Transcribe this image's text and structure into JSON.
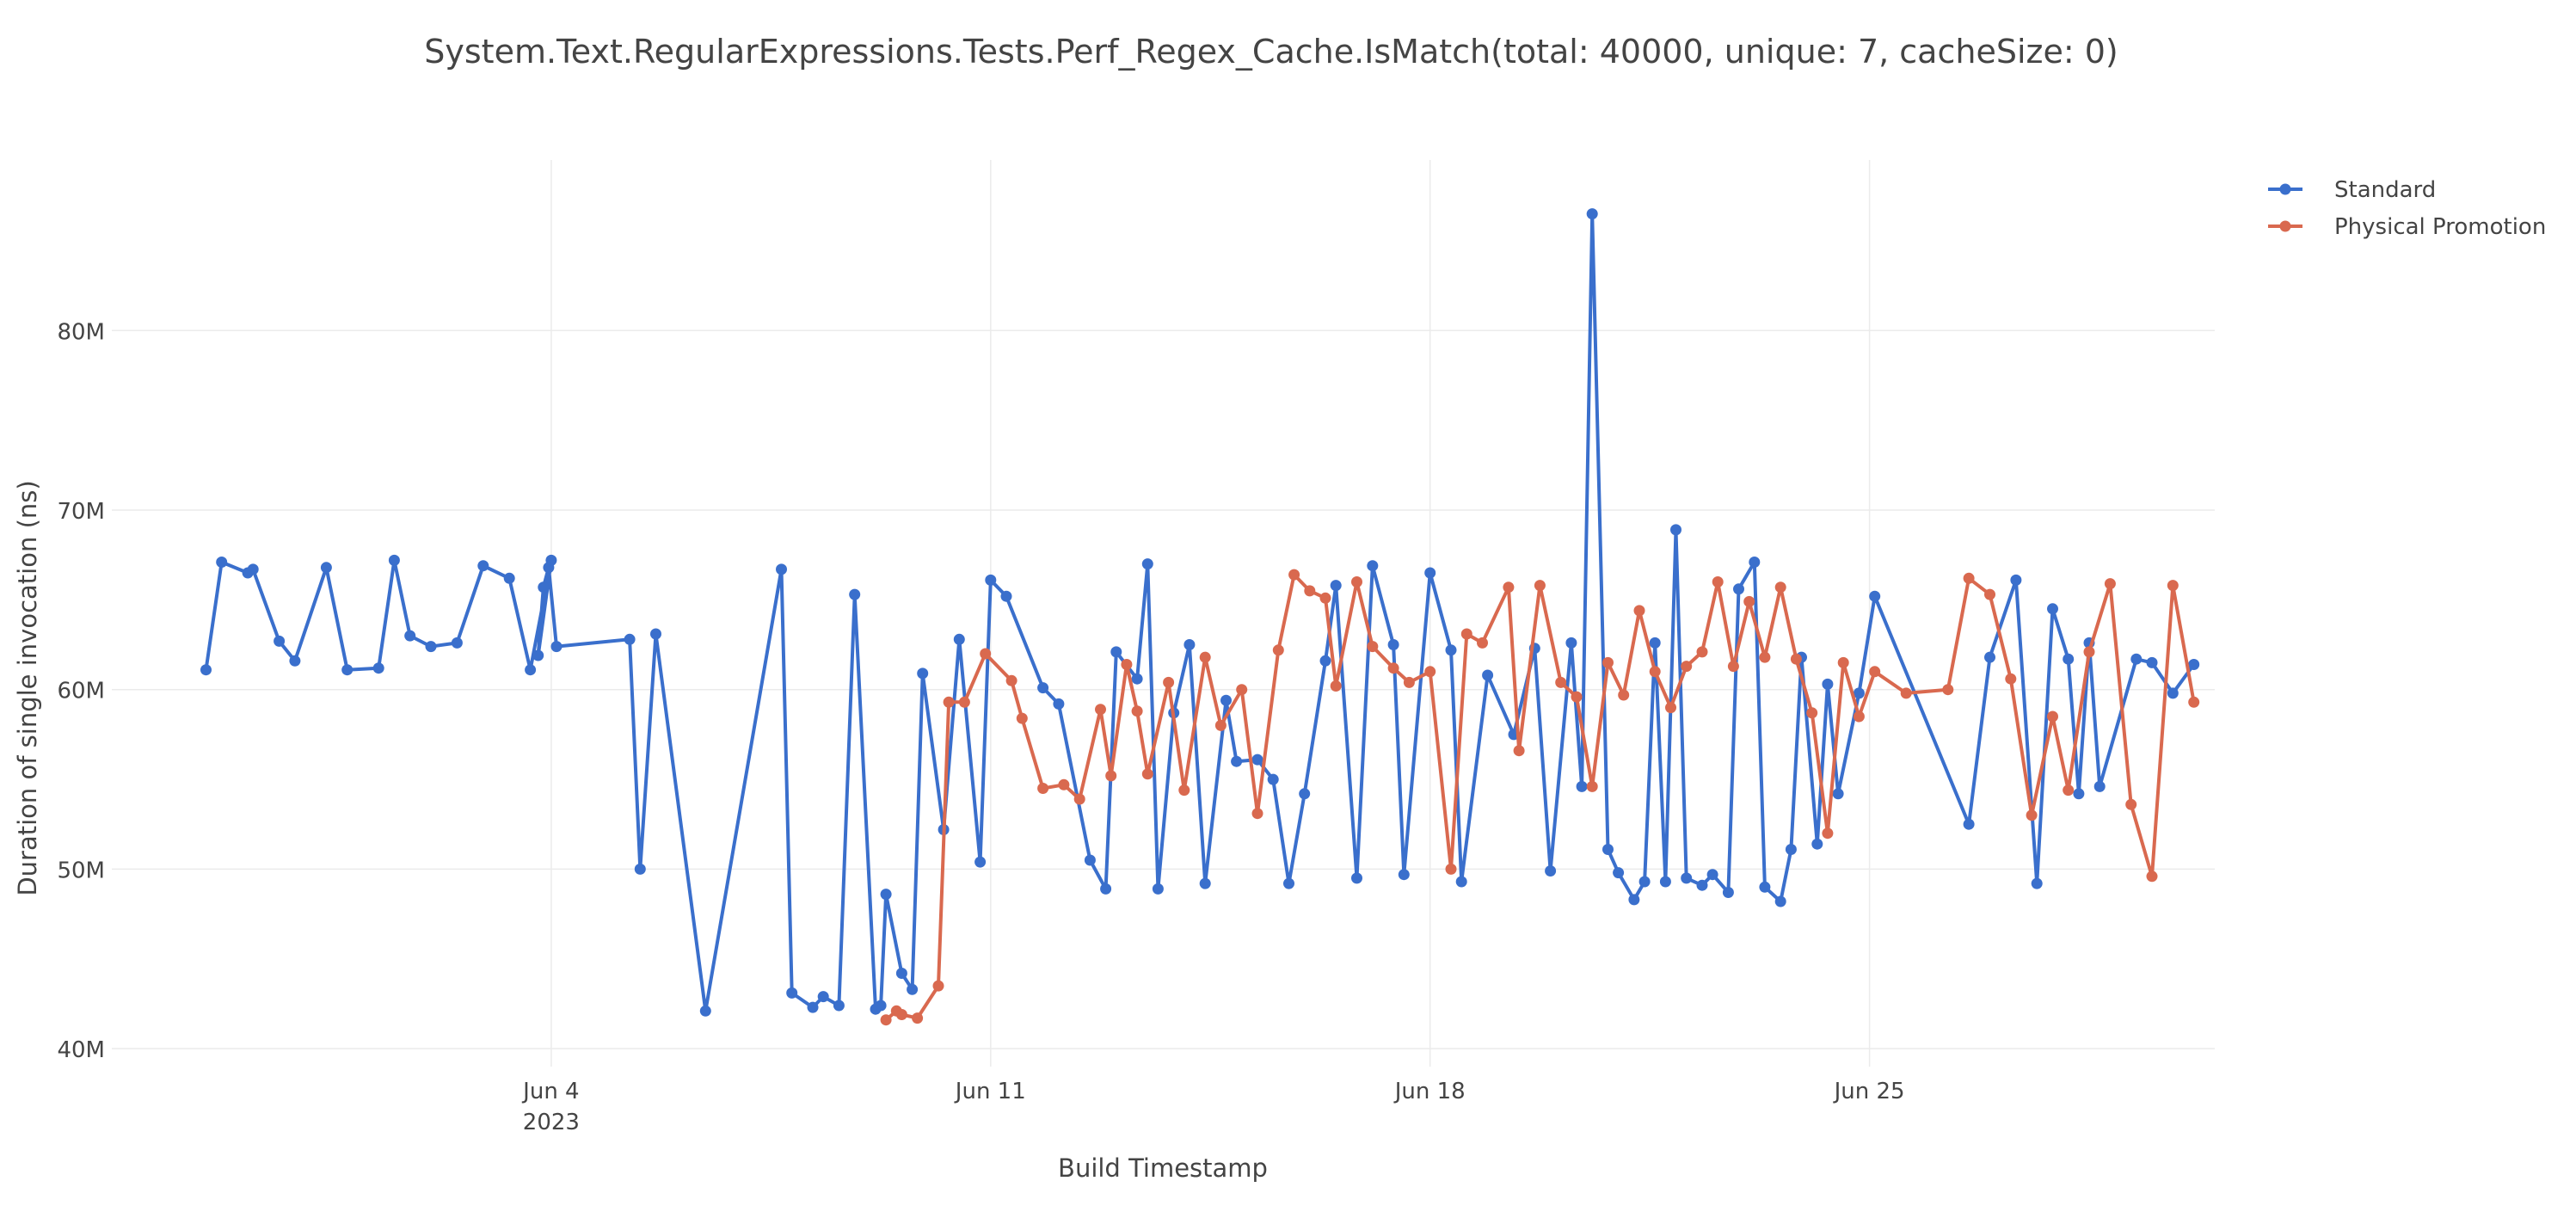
{
  "chart_data": {
    "type": "line",
    "title": "System.Text.RegularExpressions.Tests.Perf_Regex_Cache.IsMatch(total: 40000, unique: 7, cacheSize: 0)",
    "xlabel": "Build Timestamp",
    "ylabel": "Duration of single invocation (ns)",
    "x_type": "date",
    "xlim": [
      "2023-05-28",
      "2023-06-30 12:00"
    ],
    "ylim": [
      39000000,
      89500000
    ],
    "x_ticks": [
      {
        "value": "2023-06-04",
        "label": "Jun 4",
        "sublabel": "2023"
      },
      {
        "value": "2023-06-11",
        "label": "Jun 11",
        "sublabel": ""
      },
      {
        "value": "2023-06-18",
        "label": "Jun 18",
        "sublabel": ""
      },
      {
        "value": "2023-06-25",
        "label": "Jun 25",
        "sublabel": ""
      }
    ],
    "y_ticks": [
      {
        "value": 40000000,
        "label": "40M"
      },
      {
        "value": 50000000,
        "label": "50M"
      },
      {
        "value": 60000000,
        "label": "60M"
      },
      {
        "value": 70000000,
        "label": "70M"
      },
      {
        "value": 80000000,
        "label": "80M"
      }
    ],
    "grid": true,
    "legend_position": "top-right",
    "series": [
      {
        "name": "Standard",
        "color": "#3a6fcc",
        "x": [
          "2023-05-29 12:00",
          "2023-05-29 18:00",
          "2023-05-30 04:00",
          "2023-05-30 06:00",
          "2023-05-30 16:00",
          "2023-05-30 22:00",
          "2023-05-31 10:00",
          "2023-05-31 18:00",
          "2023-06-01 06:00",
          "2023-06-01 12:00",
          "2023-06-01 18:00",
          "2023-06-02 02:00",
          "2023-06-02 12:00",
          "2023-06-02 22:00",
          "2023-06-03 08:00",
          "2023-06-03 16:00",
          "2023-06-04 00:00",
          "2023-06-03 19:00",
          "2023-06-03 21:00",
          "2023-06-03 23:00",
          "2023-06-04 02:00",
          "2023-06-05 06:00",
          "2023-06-05 10:00",
          "2023-06-05 16:00",
          "2023-06-06 11:00",
          "2023-06-07 16:00",
          "2023-06-07 20:00",
          "2023-06-08 04:00",
          "2023-06-08 08:00",
          "2023-06-08 14:00",
          "2023-06-08 20:00",
          "2023-06-09 04:00",
          "2023-06-09 06:00",
          "2023-06-09 08:00",
          "2023-06-09 14:00",
          "2023-06-09 18:00",
          "2023-06-09 22:00",
          "2023-06-10 06:00",
          "2023-06-10 12:00",
          "2023-06-10 20:00",
          "2023-06-11 00:00",
          "2023-06-11 06:00",
          "2023-06-11 20:00",
          "2023-06-12 02:00",
          "2023-06-12 14:00",
          "2023-06-12 20:00",
          "2023-06-13 00:00",
          "2023-06-13 08:00",
          "2023-06-13 12:00",
          "2023-06-13 16:00",
          "2023-06-13 22:00",
          "2023-06-14 04:00",
          "2023-06-14 10:00",
          "2023-06-14 18:00",
          "2023-06-14 22:00",
          "2023-06-15 06:00",
          "2023-06-15 12:00",
          "2023-06-15 18:00",
          "2023-06-16 00:00",
          "2023-06-16 08:00",
          "2023-06-16 12:00",
          "2023-06-16 20:00",
          "2023-06-17 02:00",
          "2023-06-17 10:00",
          "2023-06-17 14:00",
          "2023-06-18 00:00",
          "2023-06-18 08:00",
          "2023-06-18 12:00",
          "2023-06-18 22:00",
          "2023-06-19 08:00",
          "2023-06-19 16:00",
          "2023-06-19 22:00",
          "2023-06-20 06:00",
          "2023-06-20 10:00",
          "2023-06-20 14:00",
          "2023-06-20 20:00",
          "2023-06-21 00:00",
          "2023-06-21 06:00",
          "2023-06-21 10:00",
          "2023-06-21 14:00",
          "2023-06-21 18:00",
          "2023-06-21 22:00",
          "2023-06-22 02:00",
          "2023-06-22 08:00",
          "2023-06-22 12:00",
          "2023-06-22 18:00",
          "2023-06-22 22:00",
          "2023-06-23 04:00",
          "2023-06-23 08:00",
          "2023-06-23 14:00",
          "2023-06-23 18:00",
          "2023-06-23 22:00",
          "2023-06-24 04:00",
          "2023-06-24 08:00",
          "2023-06-24 12:00",
          "2023-06-24 20:00",
          "2023-06-25 02:00",
          "2023-06-26 14:00",
          "2023-06-26 22:00",
          "2023-06-27 08:00",
          "2023-06-27 16:00",
          "2023-06-27 22:00",
          "2023-06-28 04:00",
          "2023-06-28 08:00",
          "2023-06-28 12:00",
          "2023-06-28 16:00",
          "2023-06-29 06:00",
          "2023-06-29 12:00",
          "2023-06-29 20:00",
          "2023-06-30 04:00"
        ],
        "y": [
          61100000,
          67100000,
          66500000,
          66700000,
          62700000,
          61600000,
          66800000,
          61100000,
          61200000,
          67200000,
          63000000,
          62400000,
          62600000,
          66900000,
          66200000,
          61100000,
          67200000,
          61900000,
          65700000,
          66800000,
          62400000,
          62800000,
          50000000,
          63100000,
          42100000,
          66700000,
          43100000,
          42300000,
          42900000,
          42400000,
          65300000,
          42200000,
          42400000,
          48600000,
          44200000,
          43300000,
          60900000,
          52200000,
          62800000,
          50400000,
          66100000,
          65200000,
          60100000,
          59200000,
          50500000,
          48900000,
          62100000,
          60600000,
          67000000,
          48900000,
          58700000,
          62500000,
          49200000,
          59400000,
          56000000,
          56100000,
          55000000,
          49200000,
          54200000,
          61600000,
          65800000,
          49500000,
          66900000,
          62500000,
          49700000,
          66500000,
          62200000,
          49300000,
          60800000,
          57500000,
          62300000,
          49900000,
          62600000,
          54600000,
          86500000,
          51100000,
          49800000,
          48300000,
          49300000,
          62600000,
          49300000,
          68900000,
          49500000,
          49100000,
          49700000,
          48700000,
          65600000,
          67100000,
          49000000,
          48200000,
          51100000,
          61800000,
          51400000,
          60300000,
          54200000,
          59800000,
          65200000,
          52500000,
          61800000,
          66100000,
          49200000,
          64500000,
          61700000,
          54200000,
          62600000,
          54600000,
          61700000,
          61500000,
          59800000,
          61400000
        ],
        "y_order_note": ""
      },
      {
        "name": "Physical Promotion",
        "color": "#d9694f",
        "x": [
          "2023-06-09 08:00",
          "2023-06-09 12:00",
          "2023-06-09 14:00",
          "2023-06-09 20:00",
          "2023-06-10 04:00",
          "2023-06-10 08:00",
          "2023-06-10 14:00",
          "2023-06-10 22:00",
          "2023-06-11 08:00",
          "2023-06-11 12:00",
          "2023-06-11 20:00",
          "2023-06-12 04:00",
          "2023-06-12 10:00",
          "2023-06-12 18:00",
          "2023-06-12 22:00",
          "2023-06-13 04:00",
          "2023-06-13 08:00",
          "2023-06-13 12:00",
          "2023-06-13 20:00",
          "2023-06-14 02:00",
          "2023-06-14 10:00",
          "2023-06-14 16:00",
          "2023-06-15 00:00",
          "2023-06-15 06:00",
          "2023-06-15 14:00",
          "2023-06-15 20:00",
          "2023-06-16 02:00",
          "2023-06-16 08:00",
          "2023-06-16 12:00",
          "2023-06-16 20:00",
          "2023-06-17 02:00",
          "2023-06-17 10:00",
          "2023-06-17 16:00",
          "2023-06-18 00:00",
          "2023-06-18 08:00",
          "2023-06-18 14:00",
          "2023-06-18 20:00",
          "2023-06-19 06:00",
          "2023-06-19 10:00",
          "2023-06-19 18:00",
          "2023-06-20 02:00",
          "2023-06-20 08:00",
          "2023-06-20 14:00",
          "2023-06-20 20:00",
          "2023-06-21 02:00",
          "2023-06-21 08:00",
          "2023-06-21 14:00",
          "2023-06-21 20:00",
          "2023-06-22 02:00",
          "2023-06-22 08:00",
          "2023-06-22 14:00",
          "2023-06-22 20:00",
          "2023-06-23 02:00",
          "2023-06-23 08:00",
          "2023-06-23 14:00",
          "2023-06-23 20:00",
          "2023-06-24 02:00",
          "2023-06-24 08:00",
          "2023-06-24 14:00",
          "2023-06-24 20:00",
          "2023-06-25 02:00",
          "2023-06-25 14:00",
          "2023-06-26 06:00",
          "2023-06-26 14:00",
          "2023-06-26 22:00",
          "2023-06-27 06:00",
          "2023-06-27 14:00",
          "2023-06-27 22:00",
          "2023-06-28 04:00",
          "2023-06-28 12:00",
          "2023-06-28 20:00",
          "2023-06-29 04:00",
          "2023-06-29 12:00",
          "2023-06-29 20:00",
          "2023-06-30 04:00"
        ],
        "y": [
          41600000,
          42100000,
          41900000,
          41700000,
          43500000,
          59300000,
          59300000,
          62000000,
          60500000,
          58400000,
          54500000,
          54700000,
          53900000,
          58900000,
          55200000,
          61400000,
          58800000,
          55300000,
          60400000,
          54400000,
          61800000,
          58000000,
          60000000,
          53100000,
          62200000,
          66400000,
          65500000,
          65100000,
          60200000,
          66000000,
          62400000,
          61200000,
          60400000,
          61000000,
          50000000,
          63100000,
          62600000,
          65700000,
          56600000,
          65800000,
          60400000,
          59600000,
          54600000,
          61500000,
          59700000,
          64400000,
          61000000,
          59000000,
          61300000,
          62100000,
          66000000,
          61300000,
          64900000,
          61800000,
          65700000,
          61700000,
          58700000,
          52000000,
          61500000,
          58500000,
          61000000,
          59800000,
          60000000,
          66200000,
          65300000,
          60600000,
          53000000,
          58500000,
          54400000,
          62100000,
          65900000,
          53600000,
          49600000,
          65800000,
          59300000
        ],
        "y_order_note": ""
      }
    ]
  }
}
